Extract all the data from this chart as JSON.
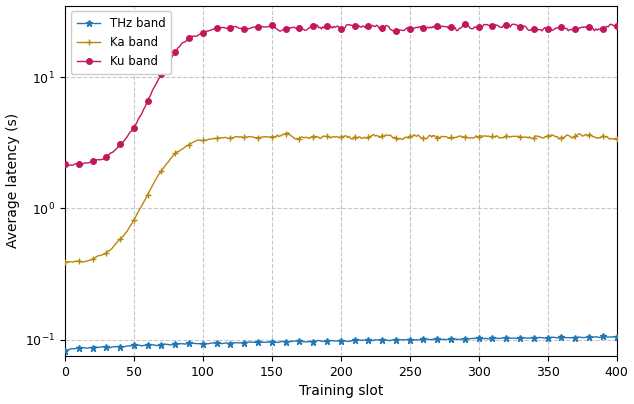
{
  "title": "",
  "xlabel": "Training slot",
  "ylabel": "Average latency (s)",
  "xlim": [
    0,
    400
  ],
  "ylim_log": [
    0.075,
    35
  ],
  "x_ticks": [
    0,
    50,
    100,
    150,
    200,
    250,
    300,
    350,
    400
  ],
  "y_ticks": [
    0.1,
    1.0,
    10.0
  ],
  "grid_color": "#b0b0b0",
  "bg_color": "#ffffff",
  "thz_color": "#1f77b4",
  "ka_color": "#b8860b",
  "ku_color": "#c2185b",
  "legend_labels": [
    "THz band",
    "Ka band",
    "Ku band"
  ],
  "figsize": [
    6.34,
    4.04
  ],
  "dpi": 100,
  "n_points": 401,
  "thz_start": 0.082,
  "thz_end": 0.105,
  "ka_start": 0.38,
  "ka_plateau": 3.5,
  "ka_inflect": 70,
  "ka_rate": 0.09,
  "ku_start": 2.1,
  "ku_plateau": 24.0,
  "ku_inflect": 75,
  "ku_rate": 0.09
}
